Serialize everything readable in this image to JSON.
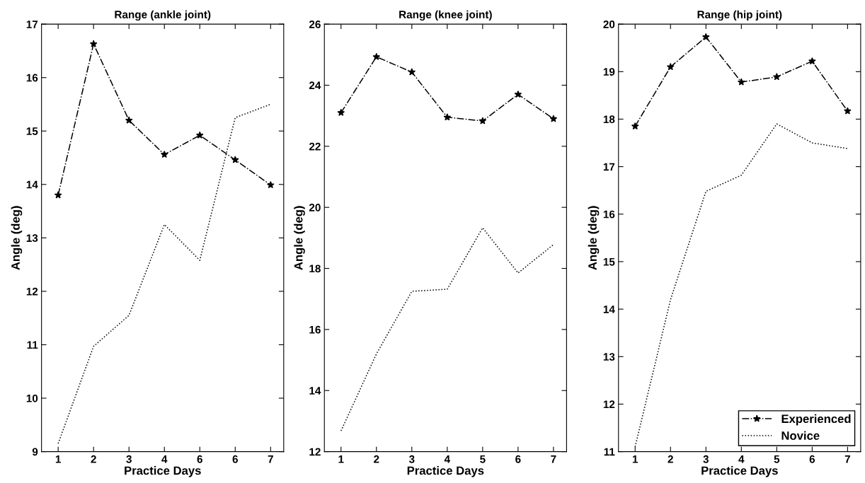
{
  "chart_data": [
    {
      "type": "line",
      "title": "Range (ankle joint)",
      "xlabel": "Practice Days",
      "ylabel": "Angle (deg)",
      "categories": [
        "1",
        "2",
        "3",
        "4",
        "6",
        "6",
        "7"
      ],
      "ylim": [
        9,
        17
      ],
      "yticks": [
        9,
        10,
        11,
        12,
        13,
        14,
        15,
        16,
        17
      ],
      "grid": false,
      "legend": false,
      "series": [
        {
          "color": "#000000",
          "marker": "star",
          "line_style": "dashdot",
          "values": [
            13.8,
            16.63,
            15.2,
            14.56,
            14.92,
            14.46,
            13.99
          ]
        },
        {
          "color": "#000000",
          "marker": "none",
          "line_style": "dotted",
          "values": [
            9.15,
            10.97,
            11.55,
            13.25,
            12.58,
            15.25,
            15.5
          ]
        }
      ]
    },
    {
      "type": "line",
      "title": "Range (knee joint)",
      "xlabel": "Practice Days",
      "ylabel": "Angle (deg)",
      "categories": [
        "1",
        "2",
        "3",
        "4",
        "5",
        "6",
        "7"
      ],
      "ylim": [
        12,
        26
      ],
      "yticks": [
        12,
        14,
        16,
        18,
        20,
        22,
        24,
        26
      ],
      "grid": false,
      "legend": false,
      "series": [
        {
          "color": "#000000",
          "marker": "star",
          "line_style": "dashdot",
          "values": [
            23.1,
            24.93,
            24.43,
            22.95,
            22.83,
            23.7,
            22.9
          ]
        },
        {
          "color": "#000000",
          "marker": "none",
          "line_style": "dotted",
          "values": [
            12.68,
            15.2,
            17.25,
            17.32,
            19.33,
            17.85,
            18.78
          ]
        }
      ]
    },
    {
      "type": "line",
      "title": "Range (hip joint)",
      "xlabel": "Practice Days",
      "ylabel": "Angle (deg)",
      "categories": [
        "1",
        "2",
        "3",
        "4",
        "5",
        "6",
        "7"
      ],
      "ylim": [
        11,
        20
      ],
      "yticks": [
        11,
        12,
        13,
        14,
        15,
        16,
        17,
        18,
        19,
        20
      ],
      "grid": false,
      "legend": "bottom right",
      "series": [
        {
          "name": "Experienced",
          "color": "#000000",
          "marker": "star",
          "line_style": "dashdot",
          "values": [
            17.85,
            19.1,
            19.73,
            18.78,
            18.89,
            19.22,
            18.17
          ]
        },
        {
          "name": "Novice",
          "color": "#000000",
          "marker": "none",
          "line_style": "dotted",
          "values": [
            11.1,
            14.2,
            16.48,
            16.82,
            17.9,
            17.5,
            17.38
          ]
        }
      ]
    }
  ]
}
